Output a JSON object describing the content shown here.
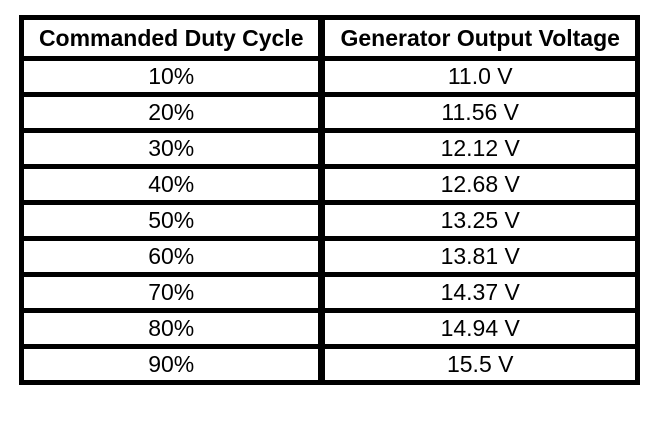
{
  "table": {
    "headers": {
      "duty": "Commanded Duty Cycle",
      "voltage": "Generator Output Voltage"
    },
    "rows": [
      {
        "duty": "10%",
        "voltage": "11.0 V"
      },
      {
        "duty": "20%",
        "voltage": "11.56 V"
      },
      {
        "duty": "30%",
        "voltage": "12.12 V"
      },
      {
        "duty": "40%",
        "voltage": "12.68 V"
      },
      {
        "duty": "50%",
        "voltage": "13.25 V"
      },
      {
        "duty": "60%",
        "voltage": "13.81 V"
      },
      {
        "duty": "70%",
        "voltage": "14.37 V"
      },
      {
        "duty": "80%",
        "voltage": "14.94 V"
      },
      {
        "duty": "90%",
        "voltage": "15.5 V"
      }
    ]
  },
  "colors": {
    "border": "#000000",
    "text": "#000000",
    "background": "#ffffff"
  },
  "chart_data": {
    "type": "table",
    "columns": [
      "Commanded Duty Cycle",
      "Generator Output Voltage"
    ],
    "duty_cycle_pct": [
      10,
      20,
      30,
      40,
      50,
      60,
      70,
      80,
      90
    ],
    "voltage_v": [
      11.0,
      11.56,
      12.12,
      12.68,
      13.25,
      13.81,
      14.37,
      14.94,
      15.5
    ],
    "rows": [
      [
        "10%",
        "11.0 V"
      ],
      [
        "20%",
        "11.56 V"
      ],
      [
        "30%",
        "12.12 V"
      ],
      [
        "40%",
        "12.68 V"
      ],
      [
        "50%",
        "13.25 V"
      ],
      [
        "60%",
        "13.81 V"
      ],
      [
        "70%",
        "14.37 V"
      ],
      [
        "80%",
        "14.94 V"
      ],
      [
        "90%",
        "15.5 V"
      ]
    ]
  }
}
